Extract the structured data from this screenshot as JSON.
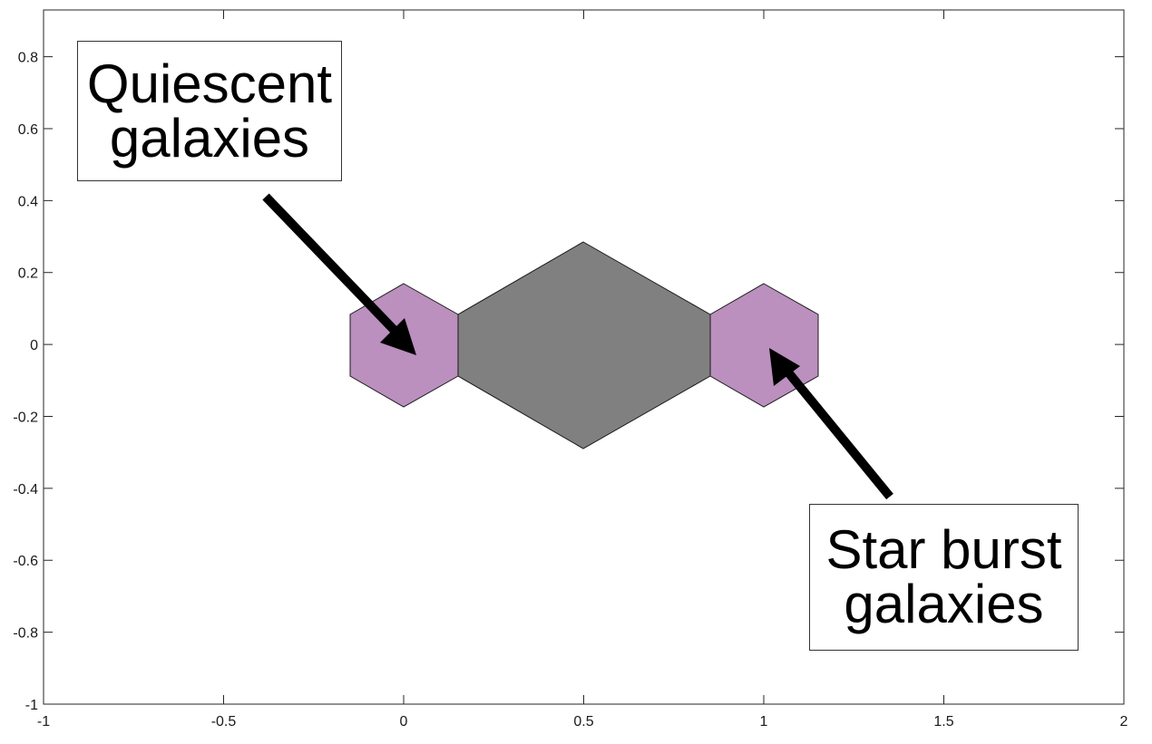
{
  "axes": {
    "x_ticks": [
      "-1",
      "-0.5",
      "0",
      "0.5",
      "1",
      "1.5",
      "2"
    ],
    "y_ticks": [
      "0.8",
      "0.6",
      "0.4",
      "0.2",
      "0",
      "-0.2",
      "-0.4",
      "-0.6",
      "-0.8",
      "-1"
    ],
    "xlim": [
      -1,
      2
    ],
    "ylim": [
      -1,
      0.93
    ]
  },
  "annotations": {
    "quiescent": {
      "line1": "Quiescent",
      "line2": "galaxies"
    },
    "starburst": {
      "line1": "Star burst",
      "line2": "galaxies"
    }
  },
  "shapes": {
    "left_hexagon_center": [
      0,
      0
    ],
    "right_hexagon_center": [
      1,
      0
    ],
    "middle_hexagon_center": [
      0.5,
      0
    ]
  },
  "colors": {
    "hexagon_purple": "#bb8fbe",
    "middle_gray": "#808080",
    "arrow": "#000000",
    "axis": "#262626"
  }
}
